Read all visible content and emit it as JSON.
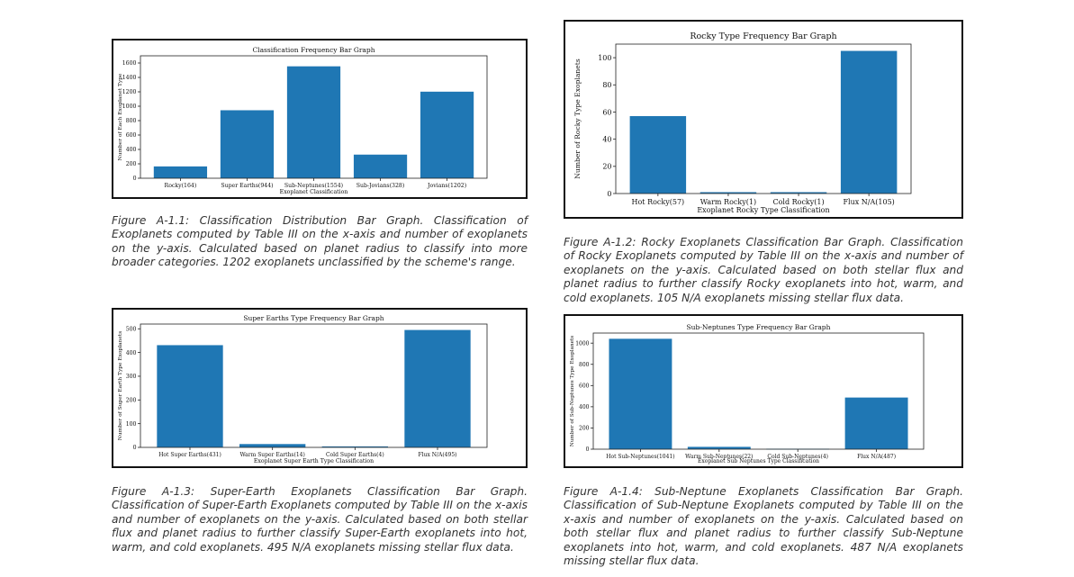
{
  "colors": {
    "bar": "#1f77b4",
    "frame": "#111111",
    "caption_text": "#333333"
  },
  "figures": [
    {
      "id": "fig-a-1-1",
      "caption": "Figure A-1.1: Classification Distribution Bar Graph. Classification of Exoplanets computed by Table III on the x-axis and number of exoplanets on the y-axis. Calculated based on planet radius to classify into more broader categories. 1202 exoplanets unclassified by the scheme's range."
    },
    {
      "id": "fig-a-1-2",
      "caption": "Figure A-1.2: Rocky Exoplanets Classification Bar Graph. Classification of Rocky Exoplanets computed by Table III on the x-axis and number of exoplanets on the y-axis. Calculated based on both stellar flux and planet radius to further classify Rocky exoplanets into hot, warm, and cold exoplanets. 105 N/A exoplanets missing stellar flux data."
    },
    {
      "id": "fig-a-1-3",
      "caption": "Figure A-1.3: Super-Earth Exoplanets Classification Bar Graph. Classification of Super-Earth Exoplanets computed by Table III on the x-axis and number of exoplanets on the y-axis. Calculated based on both stellar flux and planet radius to further classify Super-Earth exoplanets into hot, warm, and cold exoplanets. 495 N/A exoplanets missing stellar flux data."
    },
    {
      "id": "fig-a-1-4",
      "caption": "Figure A-1.4: Sub-Neptune Exoplanets Classification Bar Graph. Classification of Sub-Neptune Exoplanets computed by Table III on the x-axis and number of exoplanets on the y-axis. Calculated based on both stellar flux and planet radius to further classify Sub-Neptune exoplanets into hot, warm, and cold exoplanets. 487 N/A exoplanets missing stellar flux data."
    }
  ],
  "chart_data": [
    {
      "type": "bar",
      "title": "Classification Frequency Bar Graph",
      "xlabel": "Exoplanet Classification",
      "ylabel": "Number of Each Exoplanet Type",
      "categories": [
        "Rocky(164)",
        "Super Earths(944)",
        "Sub-Neptunes(1554)",
        "Sub-Jovians(328)",
        "Jovians(1202)"
      ],
      "values": [
        164,
        944,
        1554,
        328,
        1202
      ],
      "ylim": [
        0,
        1700
      ],
      "yticks": [
        0,
        200,
        400,
        600,
        800,
        1000,
        1200,
        1400,
        1600
      ],
      "grid": false
    },
    {
      "type": "bar",
      "title": "Rocky Type Frequency Bar Graph",
      "xlabel": "Exoplanet Rocky Type Classification",
      "ylabel": "Number of Rocky Type Exoplanets",
      "categories": [
        "Hot Rocky(57)",
        "Warm Rocky(1)",
        "Cold Rocky(1)",
        "Flux N/A(105)"
      ],
      "values": [
        57,
        1,
        1,
        105
      ],
      "ylim": [
        0,
        110
      ],
      "yticks": [
        0,
        20,
        40,
        60,
        80,
        100
      ],
      "grid": false
    },
    {
      "type": "bar",
      "title": "Super Earths Type Frequency Bar Graph",
      "xlabel": "Exoplanet Super Earth Type Classification",
      "ylabel": "Number of Super Earth Type Exoplanets",
      "categories": [
        "Hot Super Earths(431)",
        "Warm Super Earths(14)",
        "Cold Super Earths(4)",
        "Flux N/A(495)"
      ],
      "values": [
        431,
        14,
        4,
        495
      ],
      "ylim": [
        0,
        520
      ],
      "yticks": [
        0,
        100,
        200,
        300,
        400,
        500
      ],
      "grid": false
    },
    {
      "type": "bar",
      "title": "Sub-Neptunes Type Frequency Bar Graph",
      "xlabel": "Exoplanet Sub Neptunes Type Classification",
      "ylabel": "Number of Sub-Neptunes Type Exoplanets",
      "categories": [
        "Hot Sub-Neptunes(1041)",
        "Warm Sub-Neptunes(22)",
        "Cold Sub-Neptunes(4)",
        "Flux N/A(487)"
      ],
      "values": [
        1041,
        22,
        4,
        487
      ],
      "ylim": [
        0,
        1095
      ],
      "yticks": [
        0,
        200,
        400,
        600,
        800,
        1000
      ],
      "grid": false
    }
  ]
}
